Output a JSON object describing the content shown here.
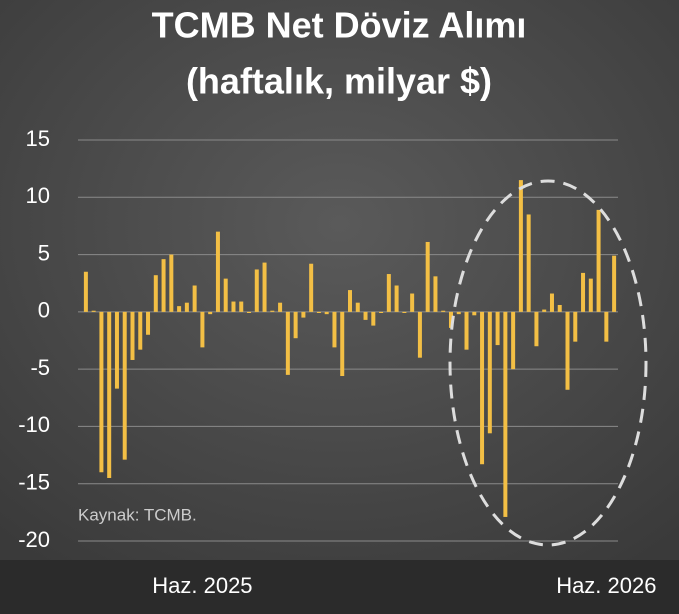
{
  "chart_data": {
    "type": "bar",
    "title": "TCMB Net Döviz Alımı",
    "subtitle": "(haftalık, milyar $)",
    "annotation": "Kaynak: TCMB.",
    "categories": [
      null,
      null,
      null,
      null,
      null,
      null,
      null,
      null,
      null,
      null,
      null,
      null,
      null,
      null,
      null,
      "Haz. 2025",
      null,
      null,
      null,
      null,
      null,
      null,
      null,
      null,
      null,
      null,
      null,
      null,
      null,
      null,
      null,
      null,
      null,
      null,
      null,
      null,
      null,
      null,
      null,
      null,
      null,
      null,
      null,
      null,
      null,
      null,
      null,
      null,
      null,
      null,
      null,
      null,
      null,
      null,
      null,
      null,
      null,
      null,
      null,
      null,
      null,
      null,
      null,
      null,
      null,
      null,
      null,
      "Haz. 2026",
      null
    ],
    "values": [
      3.5,
      0.1,
      -14,
      -14.5,
      -6.7,
      -12.9,
      -4.2,
      -3.3,
      -2,
      3.2,
      4.6,
      5,
      0.5,
      0.8,
      2.3,
      -3.1,
      -0.2,
      7,
      2.9,
      0.9,
      0.9,
      -0.1,
      3.7,
      4.3,
      0.1,
      0.8,
      -5.5,
      -2.3,
      -0.5,
      4.2,
      -0.1,
      -0.2,
      -3.1,
      -5.6,
      1.9,
      0.8,
      -0.7,
      -1.2,
      -0.1,
      3.3,
      2.3,
      -0.1,
      1.6,
      -4,
      6.1,
      3.1,
      0.1,
      -1.4,
      -0.2,
      -3.3,
      -0.3,
      -13.3,
      -10.6,
      -2.9,
      -17.9,
      -5,
      11.5,
      8.5,
      -3,
      0.2,
      1.6,
      0.6,
      -6.8,
      -2.6,
      3.4,
      2.9,
      8.9,
      -2.6,
      4.9
    ],
    "color": "#f3bf45",
    "ylim": [
      -20,
      15
    ],
    "yticks": [
      -20,
      -15,
      -10,
      -5,
      0,
      5,
      10,
      15
    ],
    "grid": true
  }
}
